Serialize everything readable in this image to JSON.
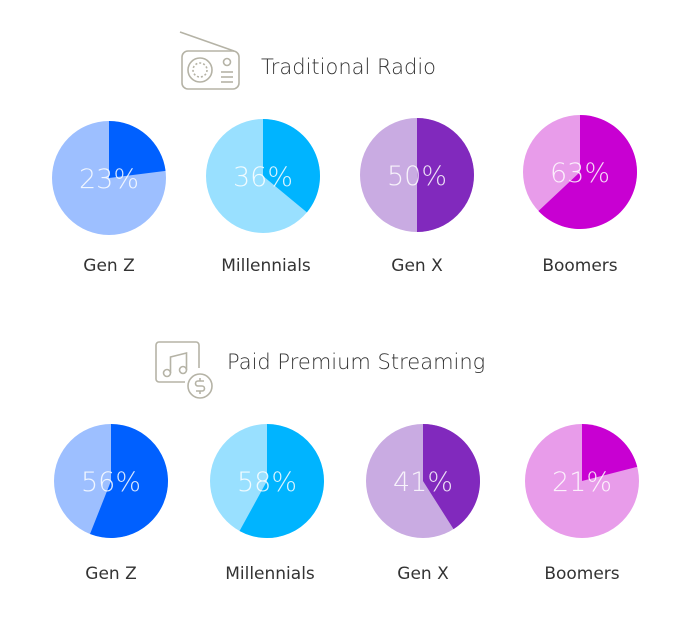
{
  "chart_data": [
    {
      "type": "pie",
      "title": "Traditional Radio",
      "icon": "radio-icon",
      "categories": [
        "Gen Z",
        "Millennials",
        "Gen X",
        "Boomers"
      ],
      "values": [
        23,
        36,
        50,
        63
      ],
      "value_suffix": "%",
      "colors": [
        [
          "#0060ff",
          "#9dbfff"
        ],
        [
          "#00b4ff",
          "#99e0ff"
        ],
        [
          "#8129bd",
          "#c9abe2"
        ],
        [
          "#c800d2",
          "#e89cea"
        ]
      ]
    },
    {
      "type": "pie",
      "title": "Paid Premium Streaming",
      "icon": "music-dollar-icon",
      "categories": [
        "Gen Z",
        "Millennials",
        "Gen X",
        "Boomers"
      ],
      "values": [
        56,
        58,
        41,
        21
      ],
      "value_suffix": "%",
      "colors": [
        [
          "#0060ff",
          "#9dbfff"
        ],
        [
          "#00b4ff",
          "#99e0ff"
        ],
        [
          "#8129bd",
          "#c9abe2"
        ],
        [
          "#c800d2",
          "#e89cea"
        ]
      ]
    }
  ]
}
